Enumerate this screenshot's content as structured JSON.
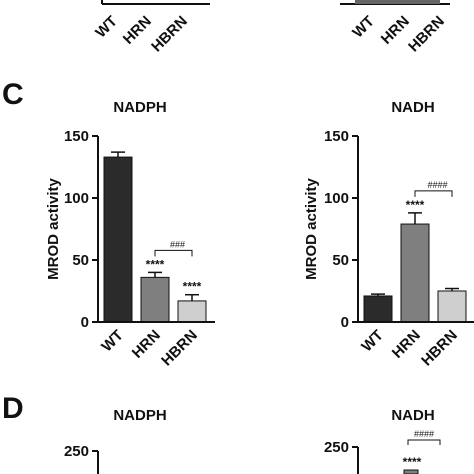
{
  "panels": {
    "C": "C",
    "D": "D"
  },
  "chart_data": [
    {
      "id": "c-nadph",
      "type": "bar",
      "title": "NADPH",
      "ylabel": "MROD activity",
      "categories": [
        "WT",
        "HRN",
        "HBRN"
      ],
      "values": [
        133,
        36,
        17
      ],
      "errors": [
        4,
        4,
        5
      ],
      "bar_colors": [
        "#2b2b2b",
        "#7f7f7f",
        "#cfcfcf"
      ],
      "ylim": [
        0,
        150
      ],
      "yticks": [
        "0",
        "50",
        "100",
        "150"
      ],
      "significance": [
        "",
        "****",
        "****"
      ],
      "bracket": {
        "from": 1,
        "to": 2,
        "label": "###"
      }
    },
    {
      "id": "c-nadh",
      "type": "bar",
      "title": "NADH",
      "ylabel": "MROD activity",
      "categories": [
        "WT",
        "HRN",
        "HBRN"
      ],
      "values": [
        21,
        79,
        25
      ],
      "errors": [
        1.5,
        9,
        2
      ],
      "bar_colors": [
        "#2b2b2b",
        "#7f7f7f",
        "#cfcfcf"
      ],
      "ylim": [
        0,
        150
      ],
      "yticks": [
        "0",
        "50",
        "100",
        "150"
      ],
      "significance": [
        "",
        "****",
        ""
      ],
      "bracket": {
        "from": 1,
        "to": 2,
        "label": "####"
      }
    },
    {
      "id": "d-nadph",
      "type": "bar",
      "title": "NADPH",
      "yticks": [
        "250"
      ],
      "ylim": [
        0,
        250
      ]
    },
    {
      "id": "d-nadh",
      "type": "bar",
      "title": "NADH",
      "yticks": [
        "250"
      ],
      "ylim": [
        0,
        250
      ],
      "significance": [
        "",
        "****",
        ""
      ],
      "bracket": {
        "from": 1,
        "to": 2,
        "label": "####"
      }
    }
  ],
  "top_fragment": {
    "categories": [
      "WT",
      "HRN",
      "HBRN"
    ]
  }
}
